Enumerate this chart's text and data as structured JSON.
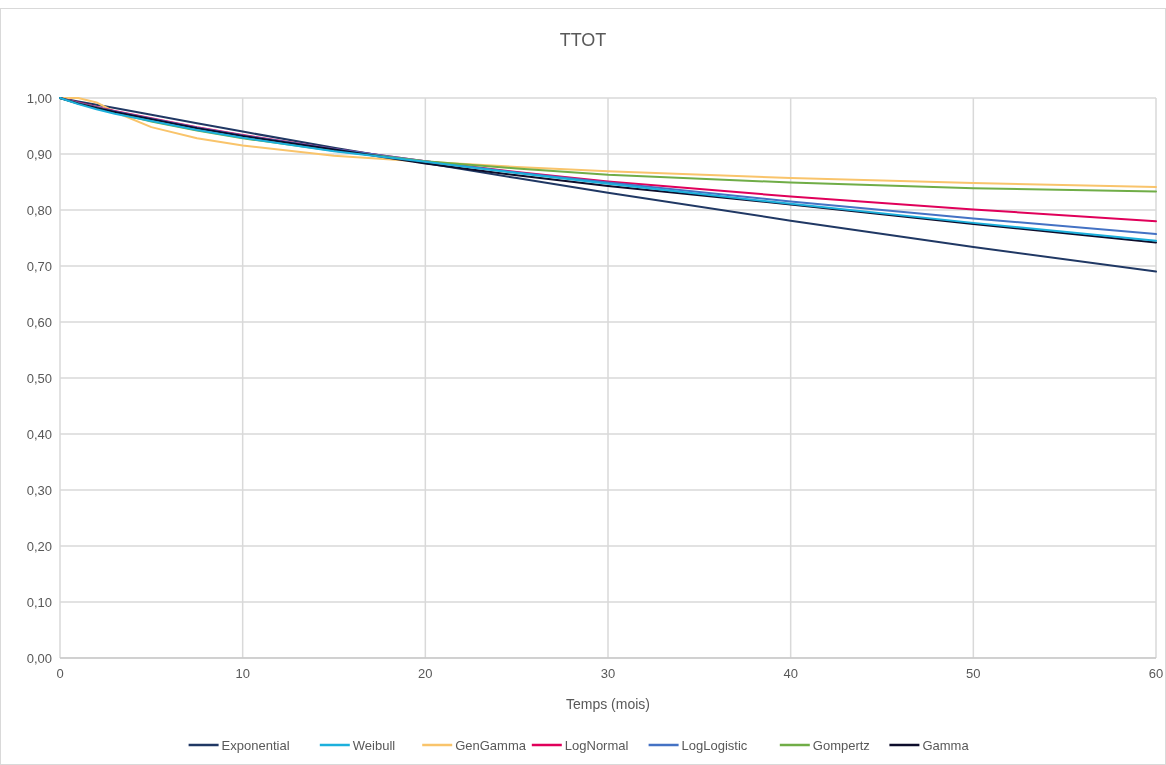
{
  "chart_data": {
    "type": "line",
    "title": "TTOT",
    "xlabel": "Temps (mois)",
    "x": [
      0,
      1,
      2,
      3,
      5,
      7.5,
      10,
      15,
      20,
      25,
      30,
      40,
      50,
      60
    ],
    "xlim": [
      0,
      60
    ],
    "xticks": [
      0,
      10,
      20,
      30,
      40,
      50,
      60
    ],
    "ylim": [
      0,
      1
    ],
    "yticks": [
      {
        "value": 0,
        "label": "0,00"
      },
      {
        "value": 0.1,
        "label": "0,10"
      },
      {
        "value": 0.2,
        "label": "0,20"
      },
      {
        "value": 0.3,
        "label": "0,30"
      },
      {
        "value": 0.4,
        "label": "0,40"
      },
      {
        "value": 0.5,
        "label": "0,50"
      },
      {
        "value": 0.6,
        "label": "0,60"
      },
      {
        "value": 0.7,
        "label": "0,70"
      },
      {
        "value": 0.8,
        "label": "0,80"
      },
      {
        "value": 0.9,
        "label": "0,90"
      },
      {
        "value": 1,
        "label": "1,00"
      }
    ],
    "grid": true,
    "legend": "bottom",
    "marker": "none",
    "line_style": "solid",
    "series": [
      {
        "name": "Exponential",
        "color": "#203864",
        "values": [
          1,
          0.994,
          0.988,
          0.982,
          0.97,
          0.955,
          0.94,
          0.911,
          0.884,
          0.857,
          0.831,
          0.781,
          0.734,
          0.69
        ]
      },
      {
        "name": "Weibull",
        "color": "#1cb0dc",
        "values": [
          1,
          0.989,
          0.98,
          0.972,
          0.959,
          0.943,
          0.929,
          0.905,
          0.886,
          0.866,
          0.847,
          0.811,
          0.777,
          0.745
        ]
      },
      {
        "name": "GenGamma",
        "color": "#f9c46b",
        "values": [
          1,
          1,
          0.992,
          0.975,
          0.948,
          0.928,
          0.915,
          0.897,
          0.886,
          0.877,
          0.869,
          0.857,
          0.848,
          0.841
        ]
      },
      {
        "name": "LogNormal",
        "color": "#e0005a",
        "values": [
          1,
          0.992,
          0.984,
          0.977,
          0.964,
          0.948,
          0.934,
          0.909,
          0.887,
          0.868,
          0.851,
          0.824,
          0.801,
          0.78
        ]
      },
      {
        "name": "LogLogistic",
        "color": "#4472c4",
        "values": [
          1,
          0.991,
          0.983,
          0.976,
          0.963,
          0.947,
          0.933,
          0.909,
          0.887,
          0.867,
          0.849,
          0.815,
          0.785,
          0.757
        ]
      },
      {
        "name": "Gompertz",
        "color": "#70ad47",
        "values": [
          1,
          0.99,
          0.982,
          0.974,
          0.958,
          0.942,
          0.928,
          0.906,
          0.887,
          0.874,
          0.863,
          0.849,
          0.839,
          0.833
        ]
      },
      {
        "name": "Gamma",
        "color": "#0d0d2b",
        "values": [
          1,
          0.99,
          0.982,
          0.975,
          0.962,
          0.946,
          0.932,
          0.908,
          0.883,
          0.862,
          0.843,
          0.81,
          0.775,
          0.742
        ]
      }
    ]
  }
}
